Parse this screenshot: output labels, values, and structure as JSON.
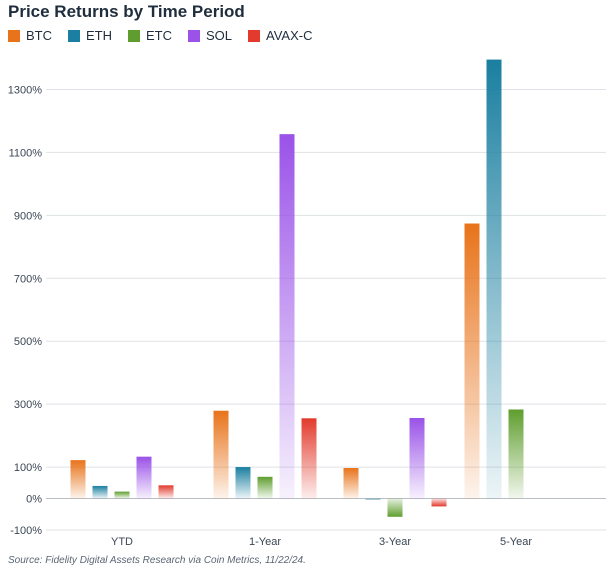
{
  "chart_data": {
    "type": "bar",
    "title": "Price Returns by Time Period",
    "categories": [
      "YTD",
      "1-Year",
      "3-Year",
      "5-Year"
    ],
    "series": [
      {
        "name": "BTC",
        "color": "#e8731a",
        "values": [
          122,
          279,
          97,
          874
        ]
      },
      {
        "name": "ETH",
        "color": "#1a7fa0",
        "values": [
          40,
          100,
          -2,
          1395
        ]
      },
      {
        "name": "ETC",
        "color": "#5f9e2e",
        "values": [
          22,
          69,
          -58,
          283
        ]
      },
      {
        "name": "SOL",
        "color": "#9a52e8",
        "values": [
          133,
          1158,
          256,
          null
        ]
      },
      {
        "name": "AVAX-C",
        "color": "#e23a2c",
        "values": [
          42,
          255,
          -25,
          null
        ]
      }
    ],
    "yticks": [
      -100,
      0,
      100,
      300,
      500,
      700,
      900,
      1100,
      1300
    ],
    "ytick_labels": [
      "-100%",
      "0%",
      "100%",
      "300%",
      "500%",
      "700%",
      "900%",
      "1100%",
      "1300%"
    ],
    "ylim": [
      -100,
      1400
    ],
    "grid": true,
    "legend": "top-left",
    "source": "Source: Fidelity Digital Assets Research via Coin Metrics, 11/22/24."
  }
}
